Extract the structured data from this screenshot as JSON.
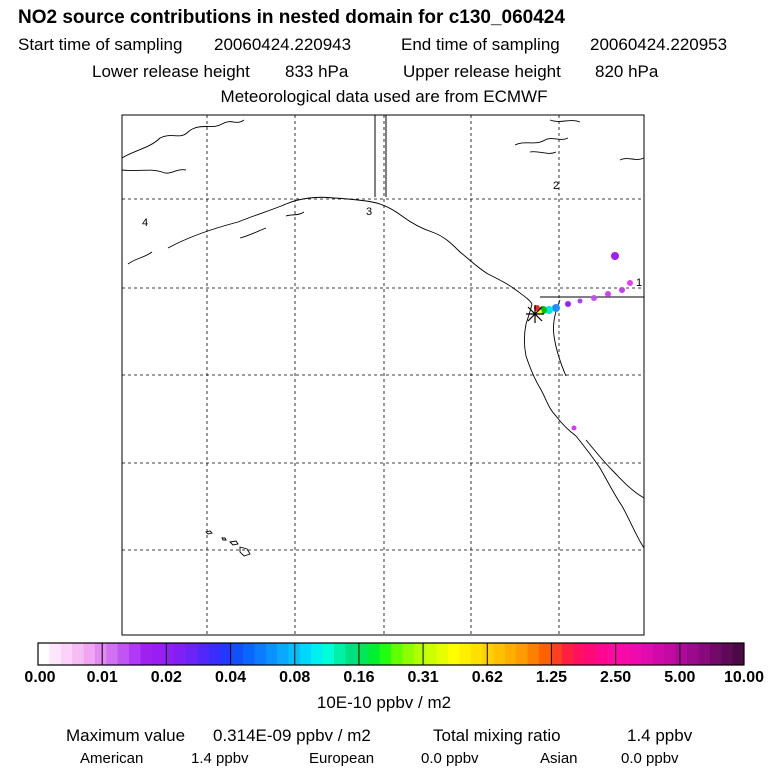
{
  "header": {
    "title": "NO2 source contributions in nested domain for c130_060424",
    "start_label": "Start time of sampling",
    "start_value": "20060424.220943",
    "end_label": "End time of sampling",
    "end_value": "20060424.220953",
    "lower_label": "Lower release height",
    "lower_value": "833 hPa",
    "upper_label": "Upper release height",
    "upper_value": "820 hPa",
    "met_line": "Meteorological data used are from ECMWF"
  },
  "map": {
    "region_labels": [
      "1",
      "2",
      "3",
      "4"
    ],
    "colors": {
      "coastline": "#000000",
      "gridline": "#000000",
      "plume_violet": "#a020f0",
      "plume_magenta": "#e040f0",
      "plume_blue": "#1e90ff",
      "plume_cyan": "#00e5e5",
      "plume_green": "#00c000",
      "plume_yellow": "#ffff00",
      "plume_red": "#ff2020"
    },
    "receptor_marker": "star-marker-icon"
  },
  "colorbar": {
    "ticks": [
      "0.00",
      "0.01",
      "0.02",
      "0.04",
      "0.08",
      "0.16",
      "0.31",
      "0.62",
      "1.25",
      "2.50",
      "5.00",
      "10.00"
    ],
    "unit": "10E-10 ppbv / m2",
    "colors": [
      "#ffffff",
      "#fde6fb",
      "#fbd2f8",
      "#f6bdf4",
      "#f0a6f2",
      "#e08af2",
      "#d070f2",
      "#c055f4",
      "#b038f6",
      "#a020f0",
      "#9a1df2",
      "#8f1ff4",
      "#8020f6",
      "#6a24f8",
      "#5228fa",
      "#3a2cfc",
      "#2238fe",
      "#1050ff",
      "#0a66ff",
      "#0a7cff",
      "#0a92ff",
      "#0aa8ff",
      "#00c0ff",
      "#00d8ff",
      "#00f0f0",
      "#00ffd8",
      "#00f0a8",
      "#00e080",
      "#00e858",
      "#00f030",
      "#20ff10",
      "#60ff00",
      "#8cff00",
      "#b0ff00",
      "#ccff00",
      "#e6ff00",
      "#ffff00",
      "#fff000",
      "#ffe000",
      "#ffd000",
      "#ffc000",
      "#ffae00",
      "#ff9a00",
      "#ff8000",
      "#ff6000",
      "#ff4020",
      "#ff2040",
      "#ff1060",
      "#ff0878",
      "#ff0890",
      "#ff0aa0",
      "#f80aa8",
      "#ee0aae",
      "#e00ab0",
      "#d00aaa",
      "#c00aa2",
      "#ae0a98",
      "#9a0a8c",
      "#860a7c",
      "#720a6a",
      "#5e0a58",
      "#4a0a46"
    ]
  },
  "summary": {
    "max_label": "Maximum value",
    "max_value": "0.314E-09 ppbv / m2",
    "total_label": "Total mixing ratio",
    "total_value": "1.4 ppbv",
    "regions": [
      {
        "name": "American",
        "value": "1.4 ppbv"
      },
      {
        "name": "European",
        "value": "0.0 ppbv"
      },
      {
        "name": "Asian",
        "value": "0.0 ppbv"
      }
    ]
  }
}
